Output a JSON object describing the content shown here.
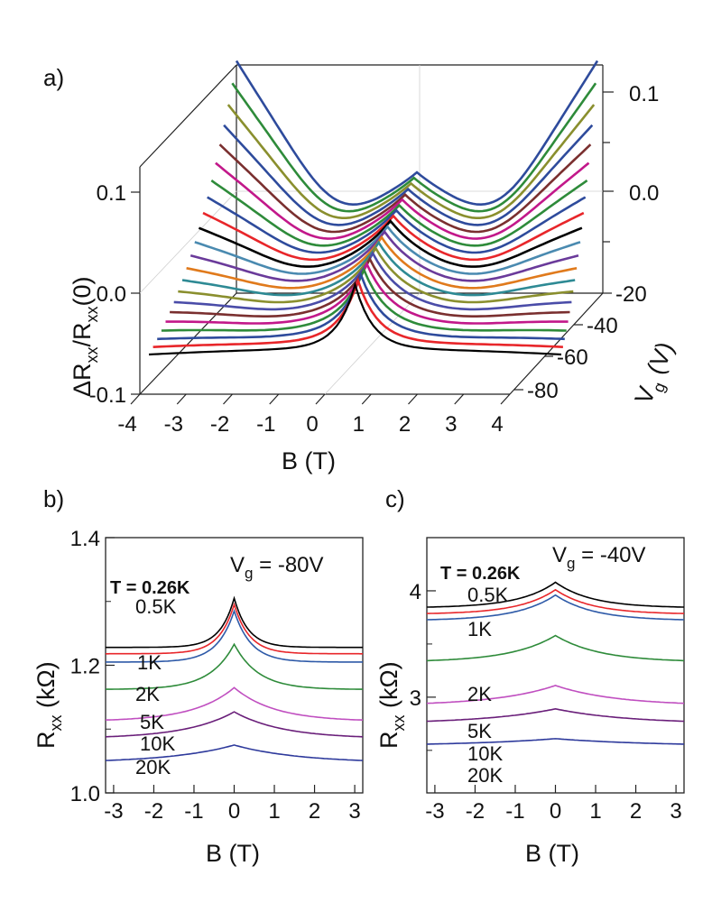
{
  "chart_data": [
    {
      "panel_label": "a)",
      "type": "line",
      "projection": "3d-waterfall",
      "title": "",
      "xlabel": "B (T)",
      "ylabel_main": "ΔR",
      "ylabel_sub1": "xx",
      "ylabel_mid": "/R",
      "ylabel_sub2": "xx",
      "ylabel_tail": "(0)",
      "zlabel_main": "V",
      "zlabel_sub": "g",
      "zlabel_tail": " (V)",
      "x_ticks": [
        "-4",
        "-3",
        "-2",
        "-1",
        "0",
        "1",
        "2",
        "3",
        "4"
      ],
      "y_ticks_left": [
        "0.1",
        "0.0",
        "-0.1"
      ],
      "y_ticks_right": [
        "0.1",
        "0.0"
      ],
      "z_ticks": [
        "-20",
        "-40",
        "-60",
        "-80"
      ],
      "xlim": [
        -4,
        4
      ],
      "ylim": [
        -0.1,
        0.1
      ],
      "zlim": [
        -80,
        -20
      ],
      "grid": true,
      "series_count": 22,
      "series_colors": [
        "#000000",
        "#e8262a",
        "#2e4b9c",
        "#2e8b3a",
        "#c2188a",
        "#7a2f2f",
        "#4a4ca8",
        "#8a8f2e",
        "#2e8a94",
        "#e07a1c",
        "#6a3a9a",
        "#4a8ab0",
        "#000000",
        "#e8262a",
        "#2e4b9c",
        "#2e8b3a",
        "#c2188a",
        "#7a2f2f",
        "#2e4b9c",
        "#8a8f2e",
        "#2e8b3a",
        "#2e4b9c"
      ],
      "series_amplitude_frac": [
        0.105,
        0.1,
        0.098,
        0.095,
        0.093,
        0.09,
        0.088,
        0.085,
        0.083,
        0.08,
        0.078,
        0.075,
        0.073,
        0.07,
        0.068,
        0.065,
        0.063,
        0.06,
        0.058,
        0.056,
        0.054,
        0.052
      ]
    },
    {
      "panel_label": "b)",
      "type": "line",
      "title": "",
      "annotation_main": "V",
      "annotation_sub": "g",
      "annotation_tail": " = -80V",
      "xlabel": "B (T)",
      "ylabel_main": "R",
      "ylabel_sub": "xx",
      "ylabel_tail": " (kΩ)",
      "x_ticks": [
        "-3",
        "-2",
        "-1",
        "0",
        "1",
        "2",
        "3"
      ],
      "y_ticks": [
        "1.4",
        "1.2",
        "1.0"
      ],
      "xlim": [
        -3.2,
        3.2
      ],
      "ylim": [
        1.0,
        1.4
      ],
      "series": [
        {
          "name": "T = 0.26K",
          "color": "#000000",
          "base": 1.228,
          "peak": 1.305,
          "width": 0.35
        },
        {
          "name": "0.5K",
          "color": "#e8262a",
          "base": 1.218,
          "peak": 1.295,
          "width": 0.38
        },
        {
          "name": "1K",
          "color": "#2e5aa8",
          "base": 1.205,
          "peak": 1.285,
          "width": 0.42
        },
        {
          "name": "2K",
          "color": "#2e8b3a",
          "base": 1.162,
          "peak": 1.233,
          "width": 0.6
        },
        {
          "name": "5K",
          "color": "#c04fc0",
          "base": 1.112,
          "peak": 1.165,
          "width": 1.0
        },
        {
          "name": "10K",
          "color": "#6a1f7a",
          "base": 1.085,
          "peak": 1.127,
          "width": 1.2
        },
        {
          "name": "20K",
          "color": "#2e3a9c",
          "base": 1.047,
          "peak": 1.075,
          "width": 1.6
        }
      ]
    },
    {
      "panel_label": "c)",
      "type": "line",
      "title": "",
      "annotation_main": "V",
      "annotation_sub": "g",
      "annotation_tail": " = -40V",
      "xlabel": "B (T)",
      "ylabel_main": "R",
      "ylabel_sub": "xx",
      "ylabel_tail": " (kΩ)",
      "x_ticks": [
        "-3",
        "-2",
        "-1",
        "0",
        "1",
        "2",
        "3"
      ],
      "y_ticks": [
        "4",
        "3"
      ],
      "xlim": [
        -3.2,
        3.2
      ],
      "ylim": [
        2.1,
        4.5
      ],
      "series": [
        {
          "name": "T = 0.26K",
          "color": "#000000",
          "base": 3.84,
          "peak": 4.08,
          "width": 0.9
        },
        {
          "name": "0.5K",
          "color": "#e8262a",
          "base": 3.78,
          "peak": 4.01,
          "width": 0.9
        },
        {
          "name": "1K",
          "color": "#2e5aa8",
          "base": 3.72,
          "peak": 3.96,
          "width": 0.95
        },
        {
          "name": "2K",
          "color": "#2e8b3a",
          "base": 3.33,
          "peak": 3.58,
          "width": 1.1
        },
        {
          "name": "5K",
          "color": "#c04fc0",
          "base": 2.92,
          "peak": 3.11,
          "width": 1.5
        },
        {
          "name": "10K",
          "color": "#6a1f7a",
          "base": 2.75,
          "peak": 2.89,
          "width": 1.8
        },
        {
          "name": "20K",
          "color": "#2e3a9c",
          "base": 2.54,
          "peak": 2.61,
          "width": 2.4
        }
      ]
    }
  ]
}
